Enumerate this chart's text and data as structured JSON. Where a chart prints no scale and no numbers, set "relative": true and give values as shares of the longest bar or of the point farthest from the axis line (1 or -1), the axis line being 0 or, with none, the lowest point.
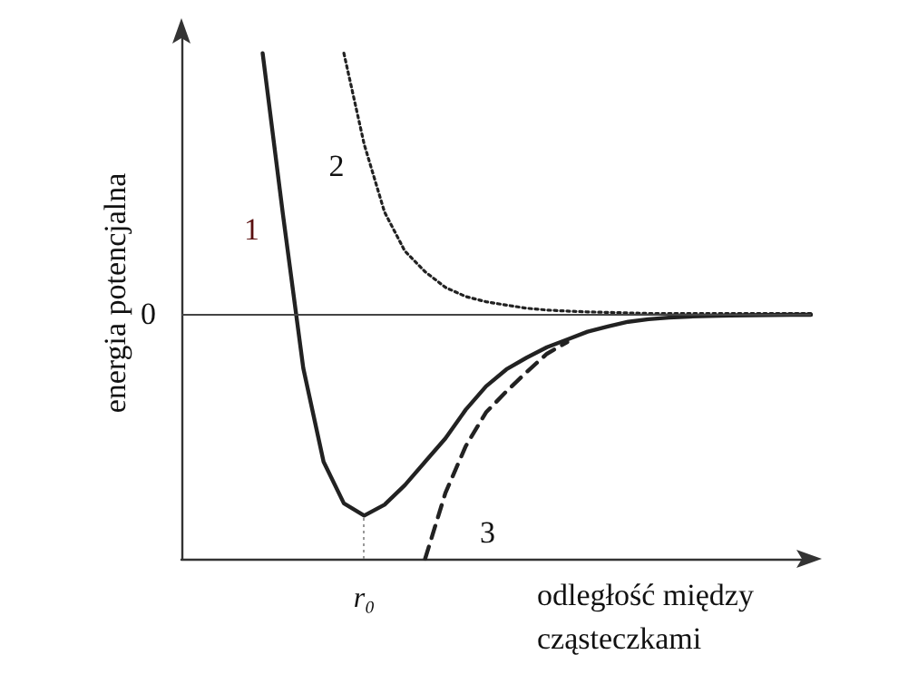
{
  "chart_data": {
    "type": "line",
    "relative": true,
    "ylabel": "energia potencjalna",
    "xlabel": "odległość między cząsteczkami",
    "marker": "none",
    "categories": [
      null,
      null,
      null,
      null,
      null,
      null,
      null,
      null,
      null,
      null,
      null,
      null,
      null,
      null,
      null,
      null,
      null,
      null,
      null,
      null,
      null,
      null,
      null,
      null,
      null,
      null,
      null,
      null,
      null,
      null,
      null,
      null
    ],
    "series": [
      {
        "name": "1",
        "color": "#222222",
        "line_style": "solid",
        "values": [
          null,
          null,
          null,
          null,
          1.0,
          0.38,
          -0.21,
          -0.57,
          -0.73,
          -0.777,
          -0.735,
          -0.66,
          -0.57,
          -0.48,
          -0.37,
          -0.28,
          -0.215,
          -0.17,
          -0.13,
          -0.1,
          -0.07,
          -0.05,
          -0.032,
          -0.022,
          -0.016,
          -0.012,
          -0.01,
          -0.008,
          -0.007,
          -0.006,
          -0.005,
          -0.005
        ]
      },
      {
        "name": "2",
        "color": "#222222",
        "line_style": "dotted",
        "values": [
          null,
          null,
          null,
          null,
          null,
          null,
          null,
          null,
          1.0,
          0.65,
          0.39,
          0.24,
          0.16,
          0.1,
          0.065,
          0.045,
          0.032,
          0.02,
          0.013,
          0.009,
          0.006,
          0.004,
          0.002,
          0,
          0,
          0,
          0,
          0,
          0,
          0,
          0,
          0
        ]
      },
      {
        "name": "3",
        "color": "#222222",
        "line_style": "dashed",
        "values": [
          null,
          null,
          null,
          null,
          null,
          null,
          null,
          null,
          null,
          null,
          null,
          null,
          -0.943,
          -0.69,
          -0.51,
          -0.38,
          -0.3,
          -0.225,
          -0.155,
          -0.11,
          null,
          null,
          null,
          null,
          null,
          null,
          null,
          null,
          null,
          null,
          null,
          null
        ]
      }
    ],
    "annotations": [
      "r₀"
    ],
    "ref_lines": [
      {
        "axis": "y",
        "value": 0,
        "label": "0",
        "color": "#444444",
        "line_style": "solid"
      }
    ]
  }
}
